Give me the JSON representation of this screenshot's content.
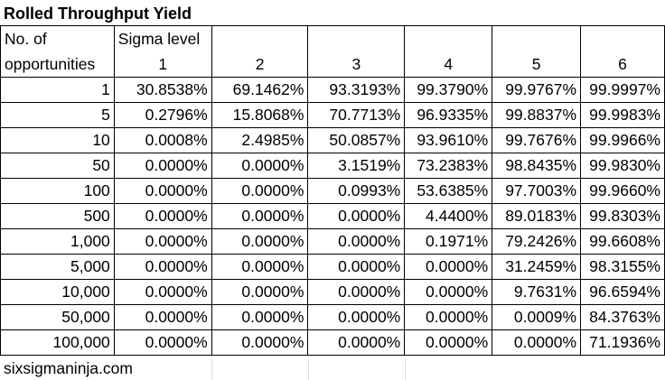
{
  "title": "Rolled Throughput Yield",
  "header": {
    "row_label_line1": "No. of",
    "row_label_line2": "opportunities",
    "sigma_label": "Sigma level",
    "sigma_levels": [
      "1",
      "2",
      "3",
      "4",
      "5",
      "6"
    ]
  },
  "rows": [
    {
      "opportunities": "1",
      "values": [
        "30.8538%",
        "69.1462%",
        "93.3193%",
        "99.3790%",
        "99.9767%",
        "99.9997%"
      ]
    },
    {
      "opportunities": "5",
      "values": [
        "0.2796%",
        "15.8068%",
        "70.7713%",
        "96.9335%",
        "99.8837%",
        "99.9983%"
      ]
    },
    {
      "opportunities": "10",
      "values": [
        "0.0008%",
        "2.4985%",
        "50.0857%",
        "93.9610%",
        "99.7676%",
        "99.9966%"
      ]
    },
    {
      "opportunities": "50",
      "values": [
        "0.0000%",
        "0.0000%",
        "3.1519%",
        "73.2383%",
        "98.8435%",
        "99.9830%"
      ]
    },
    {
      "opportunities": "100",
      "values": [
        "0.0000%",
        "0.0000%",
        "0.0993%",
        "53.6385%",
        "97.7003%",
        "99.9660%"
      ]
    },
    {
      "opportunities": "500",
      "values": [
        "0.0000%",
        "0.0000%",
        "0.0000%",
        "4.4400%",
        "89.0183%",
        "99.8303%"
      ]
    },
    {
      "opportunities": "1,000",
      "values": [
        "0.0000%",
        "0.0000%",
        "0.0000%",
        "0.1971%",
        "79.2426%",
        "99.6608%"
      ]
    },
    {
      "opportunities": "5,000",
      "values": [
        "0.0000%",
        "0.0000%",
        "0.0000%",
        "0.0000%",
        "31.2459%",
        "98.3155%"
      ]
    },
    {
      "opportunities": "10,000",
      "values": [
        "0.0000%",
        "0.0000%",
        "0.0000%",
        "0.0000%",
        "9.7631%",
        "96.6594%"
      ]
    },
    {
      "opportunities": "50,000",
      "values": [
        "0.0000%",
        "0.0000%",
        "0.0000%",
        "0.0000%",
        "0.0009%",
        "84.3763%"
      ]
    },
    {
      "opportunities": "100,000",
      "values": [
        "0.0000%",
        "0.0000%",
        "0.0000%",
        "0.0000%",
        "0.0000%",
        "71.1936%"
      ]
    }
  ],
  "footer": "sixsigmaninja.com"
}
